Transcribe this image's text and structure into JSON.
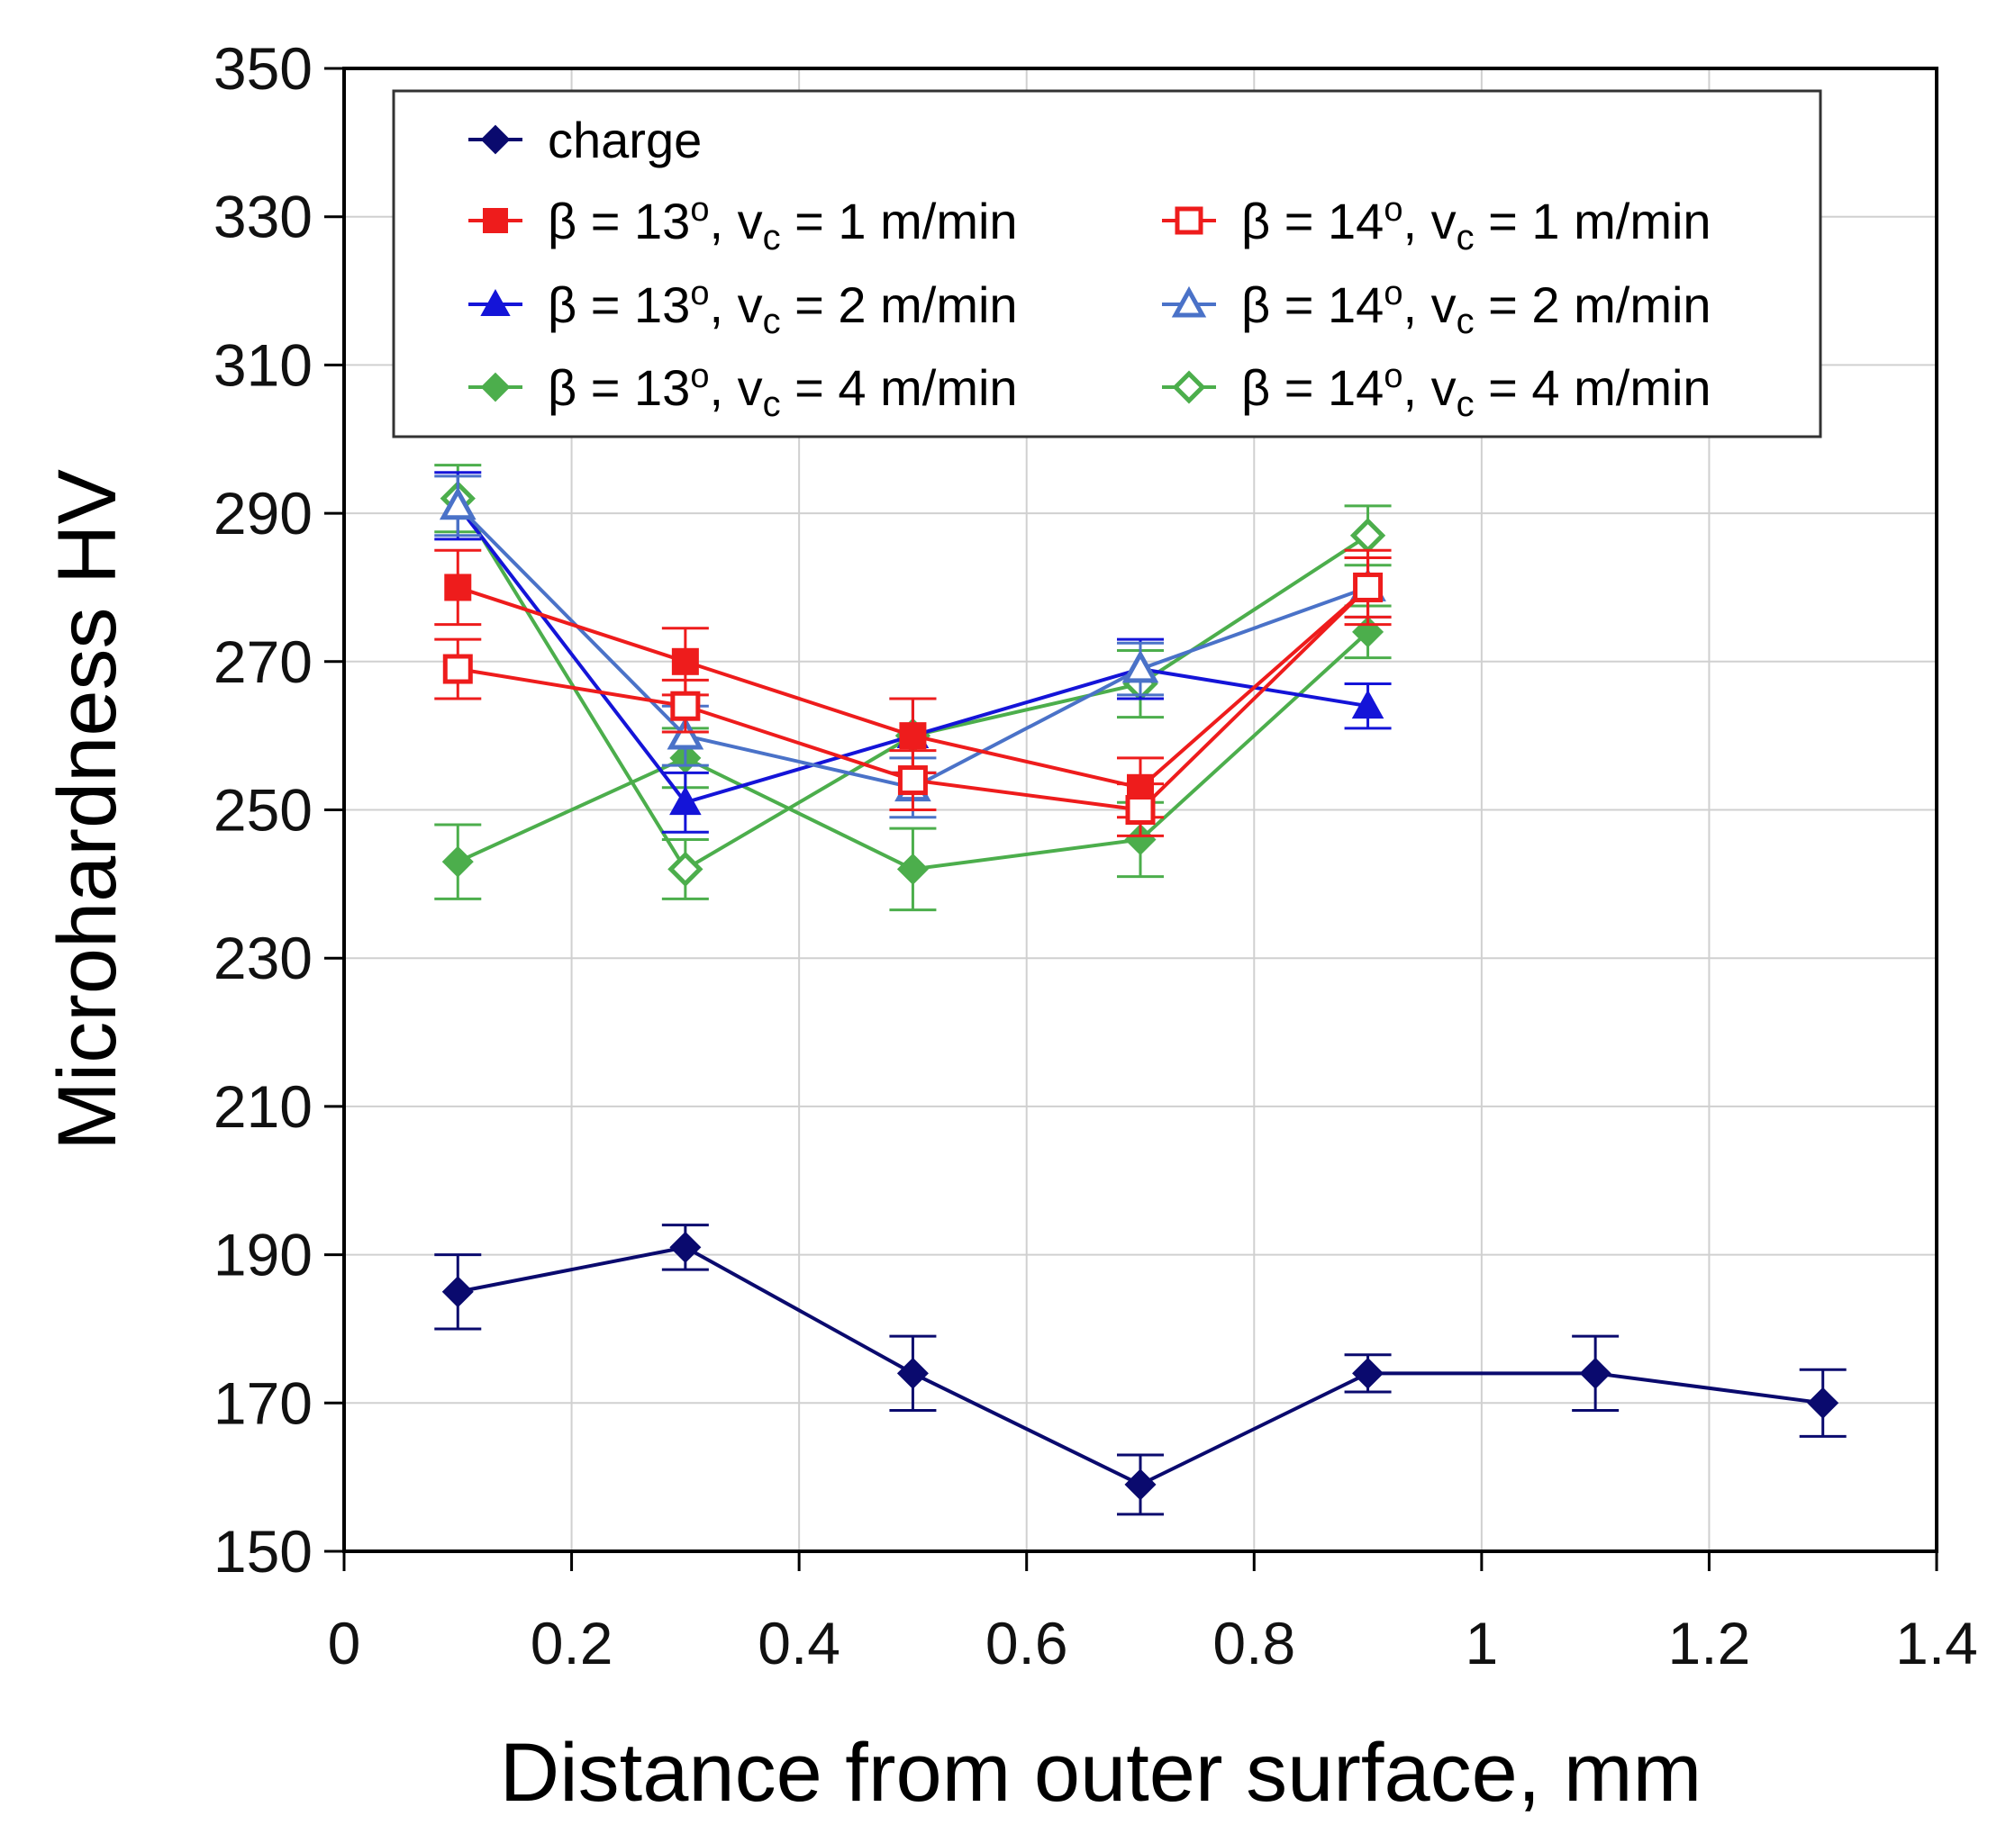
{
  "chart_data": {
    "type": "line",
    "title": "",
    "xlabel": "Distance from outer surface, mm",
    "ylabel": "Microhardness HV",
    "xlim": [
      0,
      1.4
    ],
    "ylim": [
      150,
      350
    ],
    "xticks": [
      0,
      0.2,
      0.4,
      0.6,
      0.8,
      1,
      1.2,
      1.4
    ],
    "xtick_labels": [
      "0",
      "0.2",
      "0.4",
      "0.6",
      "0.8",
      "1",
      "1.2",
      "1.4"
    ],
    "yticks": [
      150,
      170,
      190,
      210,
      230,
      250,
      270,
      290,
      310,
      330,
      350
    ],
    "ytick_labels": [
      "150",
      "170",
      "190",
      "210",
      "230",
      "250",
      "270",
      "290",
      "310",
      "330",
      "350"
    ],
    "grid": true,
    "legend_position": "top",
    "series": [
      {
        "name": "charge",
        "label": {
          "pre": "charge",
          "angle": "",
          "vsub": "",
          "post": ""
        },
        "color": "#0a0a6e",
        "marker": "diamond",
        "filled": true,
        "x": [
          0.1,
          0.3,
          0.5,
          0.7,
          0.9,
          1.1,
          1.3
        ],
        "y": [
          185,
          191,
          174,
          159,
          174,
          174,
          170
        ],
        "err": [
          5,
          3,
          5,
          4,
          2.5,
          5,
          4.5
        ]
      },
      {
        "name": "β = 13°, vc = 1 m/min",
        "label": {
          "pre": "β = 13",
          "angle": "o",
          "vsub": "c",
          "post": " = 1 m/min"
        },
        "color": "#ee1c1c",
        "marker": "square",
        "filled": true,
        "x": [
          0.1,
          0.3,
          0.5,
          0.7,
          0.9
        ],
        "y": [
          280,
          270,
          260,
          253,
          280
        ],
        "err": [
          5,
          4.5,
          5,
          4,
          5
        ]
      },
      {
        "name": "β = 14°, vc = 1 m/min",
        "label": {
          "pre": "β = 14",
          "angle": "o",
          "vsub": "c",
          "post": " = 1 m/min"
        },
        "color": "#ee1c1c",
        "marker": "square",
        "filled": false,
        "x": [
          0.1,
          0.3,
          0.5,
          0.7,
          0.9
        ],
        "y": [
          269,
          264,
          254,
          250,
          280
        ],
        "err": [
          4,
          3.5,
          4,
          3.5,
          4
        ]
      },
      {
        "name": "β = 13°, vc = 2 m/min",
        "label": {
          "pre": "β = 13",
          "angle": "o",
          "vsub": "c",
          "post": " = 2 m/min"
        },
        "color": "#1414d8",
        "marker": "triangle",
        "filled": true,
        "x": [
          0.1,
          0.3,
          0.5,
          0.7,
          0.9
        ],
        "y": [
          291,
          251,
          260,
          269,
          264
        ],
        "err": [
          4.5,
          4,
          5,
          4,
          3
        ]
      },
      {
        "name": "β = 14°, vc = 2 m/min",
        "label": {
          "pre": "β = 14",
          "angle": "o",
          "vsub": "c",
          "post": " = 2 m/min"
        },
        "color": "#4a72c8",
        "marker": "triangle",
        "filled": false,
        "x": [
          0.1,
          0.3,
          0.5,
          0.7,
          0.9
        ],
        "y": [
          291,
          260,
          253,
          269,
          280
        ],
        "err": [
          4,
          4,
          4,
          3.5,
          4
        ]
      },
      {
        "name": "β = 13°, vc = 4 m/min",
        "label": {
          "pre": "β = 13",
          "angle": "o",
          "vsub": "c",
          "post": " = 4 m/min"
        },
        "color": "#4cae4c",
        "marker": "diamond",
        "filled": true,
        "x": [
          0.1,
          0.3,
          0.5,
          0.7,
          0.9
        ],
        "y": [
          243,
          257,
          242,
          246,
          274
        ],
        "err": [
          5,
          4,
          5.5,
          5,
          3.5
        ]
      },
      {
        "name": "β = 14°, vc = 4 m/min",
        "label": {
          "pre": "β = 14",
          "angle": "o",
          "vsub": "c",
          "post": " = 4 m/min"
        },
        "color": "#4cae4c",
        "marker": "diamond",
        "filled": false,
        "x": [
          0.1,
          0.3,
          0.5,
          0.7,
          0.9
        ],
        "y": [
          292,
          242,
          260,
          267,
          287
        ],
        "err": [
          4.5,
          4,
          5,
          4.5,
          4
        ]
      }
    ]
  }
}
